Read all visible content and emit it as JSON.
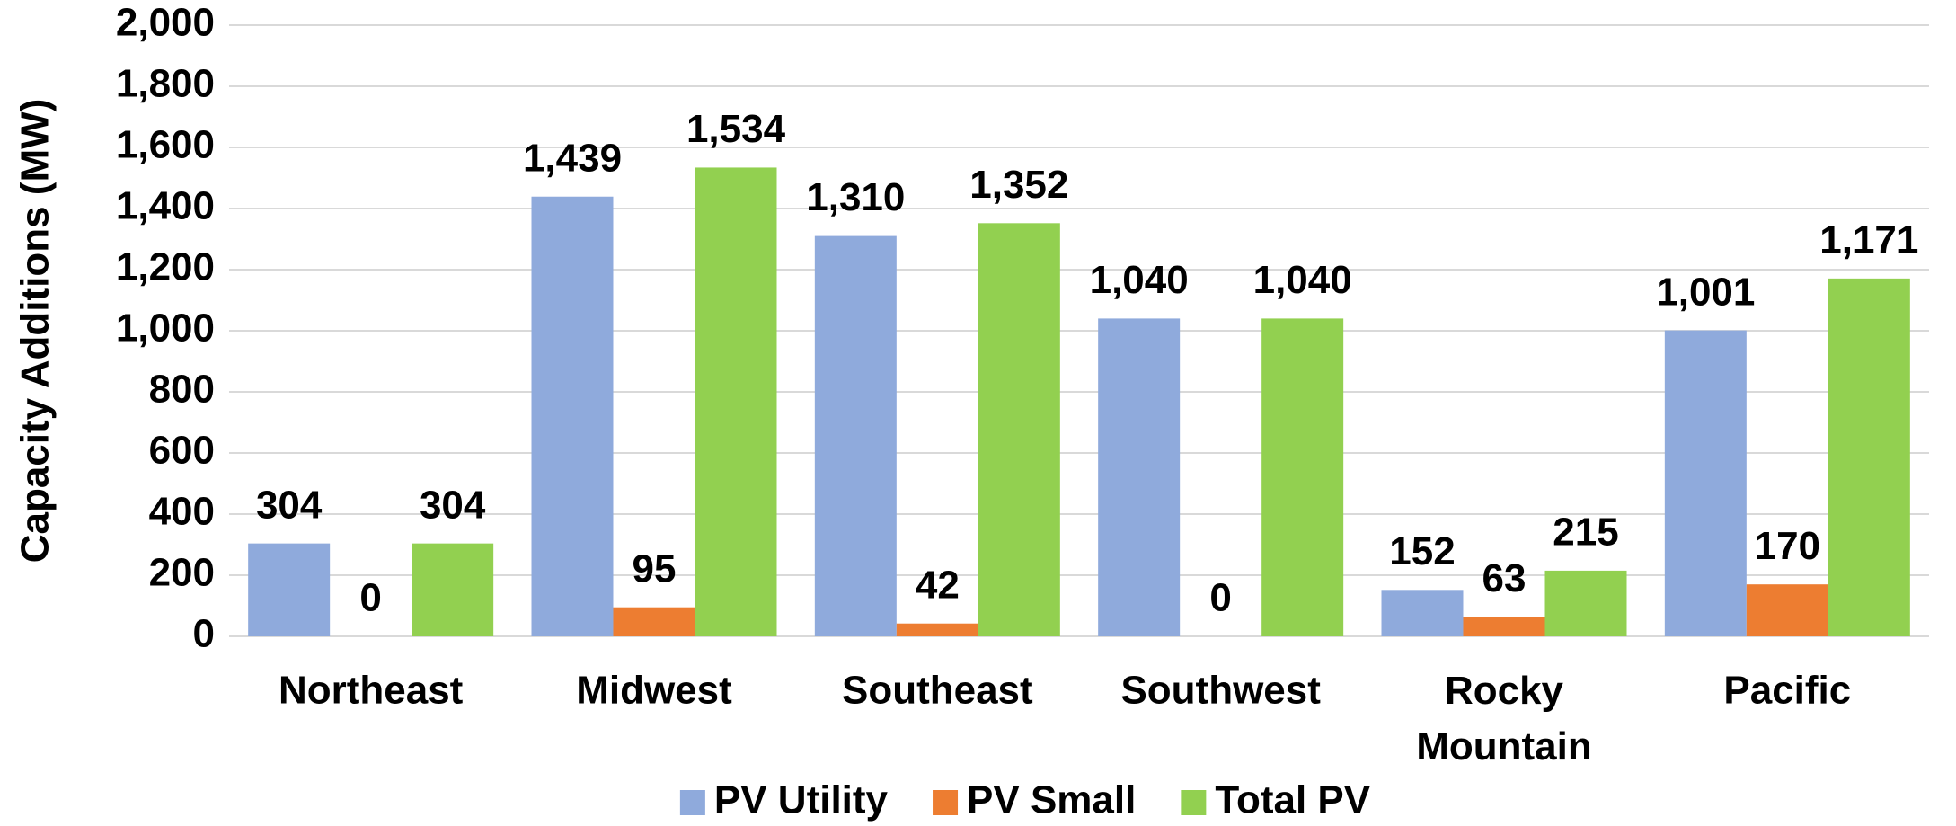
{
  "chart_data": {
    "type": "bar",
    "y_label": "Capacity Additions (MW)",
    "categories": [
      "Northeast",
      "Midwest",
      "Southeast",
      "Southwest",
      "Rocky Mountain",
      "Pacific"
    ],
    "series": [
      {
        "name": "PV Utility",
        "color": "#8faadc",
        "values": [
          304,
          1439,
          1310,
          1040,
          152,
          1001
        ],
        "value_labels": [
          "304",
          "1,439",
          "1,310",
          "1,040",
          "152",
          "1,001"
        ]
      },
      {
        "name": "PV Small",
        "color": "#ed7d31",
        "values": [
          0,
          95,
          42,
          0,
          63,
          170
        ],
        "value_labels": [
          "0",
          "95",
          "42",
          "0",
          "63",
          "170"
        ]
      },
      {
        "name": "Total PV",
        "color": "#92d050",
        "values": [
          304,
          1534,
          1352,
          1040,
          215,
          1171
        ],
        "value_labels": [
          "304",
          "1,534",
          "1,352",
          "1,040",
          "215",
          "1,171"
        ]
      }
    ],
    "ylim": [
      0,
      2000
    ],
    "yticks": [
      0,
      200,
      400,
      600,
      800,
      {
        "value": 1000,
        "label": "1,000"
      },
      {
        "value": 1200,
        "label": "1,200"
      },
      {
        "value": 1400,
        "label": "1,400"
      },
      {
        "value": 1600,
        "label": "1,600"
      },
      {
        "value": 1800,
        "label": "1,800"
      },
      {
        "value": 2000,
        "label": "2,000"
      }
    ],
    "grid": true,
    "legend": "bottom"
  }
}
